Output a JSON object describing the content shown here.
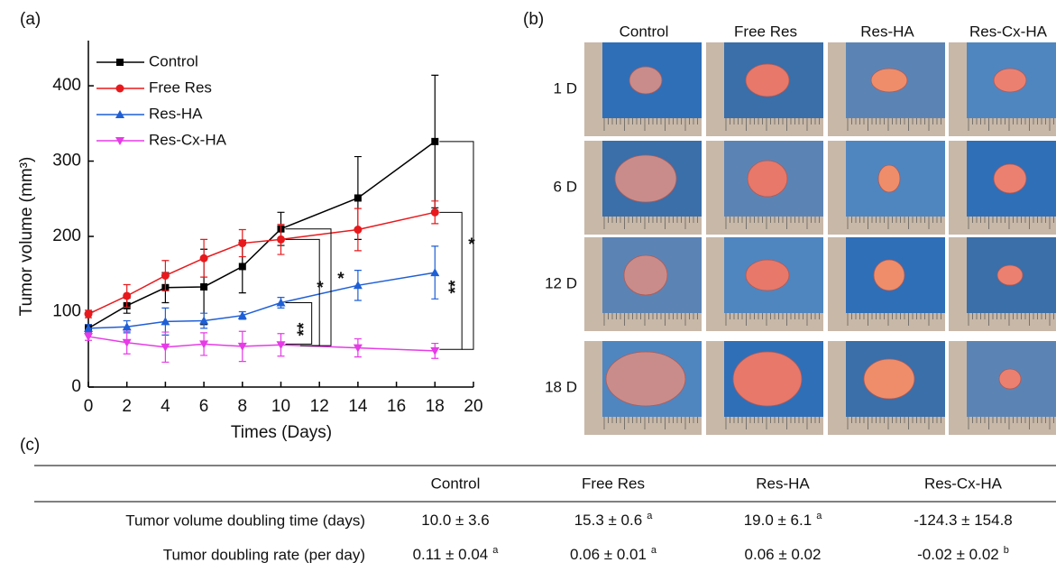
{
  "chart_data": {
    "type": "line",
    "panel": "(a)",
    "xlabel": "Times (Days)",
    "ylabel": "Tumor volume (mm³)",
    "x": [
      0,
      2,
      4,
      6,
      8,
      10,
      14,
      18
    ],
    "xlim": [
      0,
      20
    ],
    "xticks": [
      0,
      2,
      4,
      6,
      8,
      10,
      12,
      14,
      16,
      18,
      20
    ],
    "ylim": [
      0,
      460
    ],
    "yticks": [
      0,
      100,
      200,
      300,
      400
    ],
    "legend": "upper left",
    "series": [
      {
        "name": "Control",
        "color": "#000000",
        "marker": "square",
        "values": [
          78,
          108,
          132,
          133,
          160,
          210,
          251,
          326
        ],
        "errors": [
          5,
          10,
          20,
          50,
          35,
          22,
          55,
          88
        ]
      },
      {
        "name": "Free Res",
        "color": "#e8191c",
        "marker": "circle",
        "values": [
          97,
          121,
          148,
          171,
          191,
          196,
          209,
          232
        ],
        "errors": [
          5,
          15,
          20,
          25,
          18,
          20,
          28,
          15
        ]
      },
      {
        "name": "Res-HA",
        "color": "#1f5fd6",
        "marker": "triangle-up",
        "values": [
          78,
          80,
          87,
          88,
          95,
          112,
          135,
          152
        ],
        "errors": [
          5,
          8,
          18,
          10,
          5,
          7,
          20,
          35
        ]
      },
      {
        "name": "Res-Cx-HA",
        "color": "#e63be6",
        "marker": "triangle-down",
        "values": [
          67,
          59,
          53,
          57,
          54,
          56,
          52,
          48
        ],
        "errors": [
          5,
          15,
          20,
          15,
          20,
          15,
          12,
          10
        ]
      }
    ],
    "annotations": [
      "*",
      "*",
      "**",
      "**",
      "*"
    ]
  },
  "photos": {
    "panel": "(b)",
    "columns": [
      "Control",
      "Free Res",
      "Res-HA",
      "Res-Cx-HA"
    ],
    "rows": [
      "1 D",
      "6 D",
      "12 D",
      "18 D"
    ]
  },
  "table": {
    "panel": "(c)",
    "columns": [
      "Control",
      "Free Res",
      "Res-HA",
      "Res-Cx-HA"
    ],
    "rows": [
      {
        "label": "Tumor volume doubling time (days)",
        "cells": [
          {
            "text": "10.0 ± 3.6"
          },
          {
            "text": "15.3 ± 0.6",
            "sup": "a"
          },
          {
            "text": "19.0 ± 6.1",
            "sup": "a"
          },
          {
            "text": "-124.3 ± 154.8"
          }
        ]
      },
      {
        "label": "Tumor doubling rate (per day)",
        "cells": [
          {
            "text": "0.11 ± 0.04",
            "sup": "a"
          },
          {
            "text": "0.06 ± 0.01",
            "sup": "a"
          },
          {
            "text": "0.06 ± 0.02"
          },
          {
            "text": "-0.02 ± 0.02",
            "sup": "b"
          }
        ]
      }
    ]
  }
}
